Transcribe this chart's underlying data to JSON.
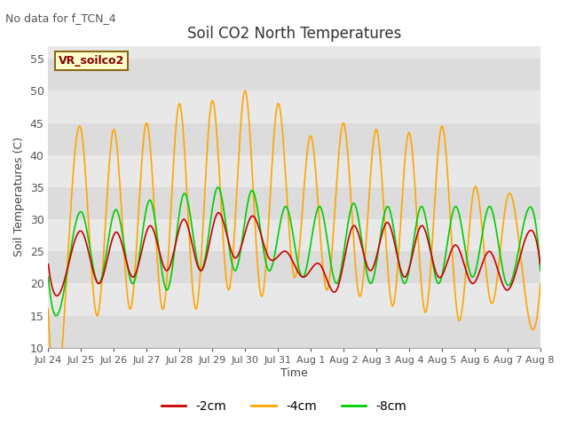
{
  "title": "Soil CO2 North Temperatures",
  "subtitle": "No data for f_TCN_4",
  "ylabel": "Soil Temperatures (C)",
  "xlabel": "Time",
  "ylim": [
    10,
    57
  ],
  "yticks": [
    10,
    15,
    20,
    25,
    30,
    35,
    40,
    45,
    50,
    55
  ],
  "legend_label": "VR_soilco2",
  "colors": {
    "neg2cm": "#cc0000",
    "neg4cm": "#ffa500",
    "neg8cm": "#00cc00"
  },
  "xtick_labels": [
    "Jul 24",
    "Jul 25",
    "Jul 26",
    "Jul 27",
    "Jul 28",
    "Jul 29",
    "Jul 30",
    "Jul 31",
    "Aug 1",
    "Aug 2",
    "Aug 3",
    "Aug 4",
    "Aug 5",
    "Aug 6",
    "Aug 7",
    "Aug 8"
  ],
  "band_colors": [
    "#dcdcdc",
    "#e8e8e8"
  ],
  "band_ranges": [
    [
      10,
      15
    ],
    [
      15,
      20
    ],
    [
      20,
      25
    ],
    [
      25,
      30
    ],
    [
      30,
      35
    ],
    [
      35,
      40
    ],
    [
      40,
      45
    ],
    [
      45,
      50
    ],
    [
      50,
      55
    ],
    [
      55,
      60
    ]
  ],
  "neg4cm_values": [
    16,
    16,
    44,
    15,
    44,
    16,
    45,
    16,
    48,
    16,
    48.5,
    19,
    50,
    18,
    48,
    21,
    43,
    19,
    45,
    18,
    44,
    16.5,
    43.5,
    15.5,
    44.5,
    14.5,
    35,
    17,
    33.5,
    20,
    20
  ],
  "neg2cm_values": [
    23,
    21,
    28,
    20,
    28,
    21,
    29,
    22,
    30,
    22,
    31,
    24,
    30.5,
    24,
    25,
    21,
    23,
    19,
    29,
    22,
    29.5,
    21,
    29,
    21,
    26,
    20,
    25,
    19,
    26,
    23
  ],
  "neg8cm_values": [
    21,
    20,
    31,
    20,
    31.5,
    20,
    33,
    19,
    34,
    22,
    35,
    22,
    34.5,
    22,
    32,
    21,
    32,
    20,
    32.5,
    20,
    32,
    20,
    32,
    20,
    32,
    21,
    32,
    20,
    29,
    22
  ],
  "figsize": [
    6.4,
    4.8
  ],
  "dpi": 100
}
